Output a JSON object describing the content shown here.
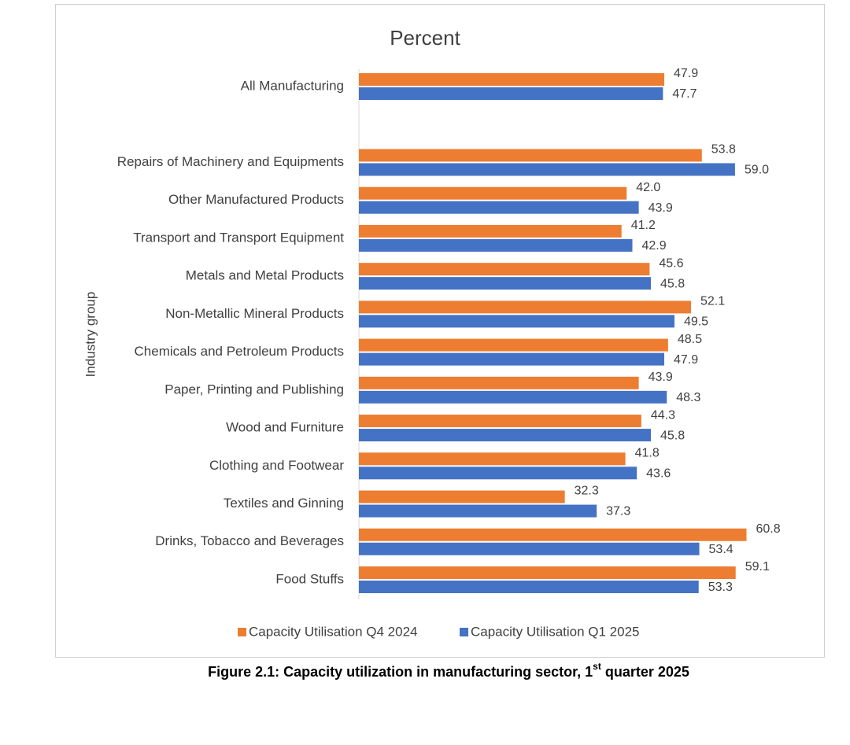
{
  "chart_data": {
    "type": "hbar",
    "title": "Percent",
    "y_label": "Industry group",
    "categories": [
      "All Manufacturing",
      null,
      "Repairs of Machinery and Equipments",
      "Other Manufactured Products",
      "Transport and Transport Equipment",
      "Metals and Metal Products",
      "Non-Metallic Mineral Products",
      "Chemicals and Petroleum Products",
      "Paper, Printing and Publishing",
      "Wood and Furniture",
      "Clothing and Footwear",
      "Textiles and Ginning",
      "Drinks, Tobacco and Beverages",
      "Food Stuffs"
    ],
    "series": [
      {
        "name": "Capacity Utilisation Q4 2024",
        "color": "#ed7d31",
        "values": [
          47.9,
          null,
          53.8,
          42.0,
          41.2,
          45.6,
          52.1,
          48.5,
          43.9,
          44.3,
          41.8,
          32.3,
          60.8,
          59.1
        ],
        "value_labels": [
          "47.9",
          null,
          "53.8",
          "42.0",
          "41.2",
          "45.6",
          "52.1",
          "48.5",
          "43.9",
          "44.3",
          "41.8",
          "32.3",
          "60.8",
          "59.1"
        ]
      },
      {
        "name": "Capacity Utilisation Q1 2025",
        "color": "#4472c4",
        "values": [
          47.7,
          null,
          59.0,
          43.9,
          42.9,
          45.8,
          49.5,
          47.9,
          48.3,
          45.8,
          43.6,
          37.3,
          53.4,
          53.3
        ],
        "value_labels": [
          "47.7",
          null,
          "59.0",
          "43.9",
          "42.9",
          "45.8",
          "49.5",
          "47.9",
          "48.3",
          "45.8",
          "43.6",
          "37.3",
          "53.4",
          "53.3"
        ]
      }
    ],
    "xlim": [
      0,
      70
    ]
  },
  "caption": {
    "text": "Figure 2.1: Capacity utilization in manufacturing sector, 1",
    "superscript": "st",
    "suffix": " quarter 2025"
  }
}
